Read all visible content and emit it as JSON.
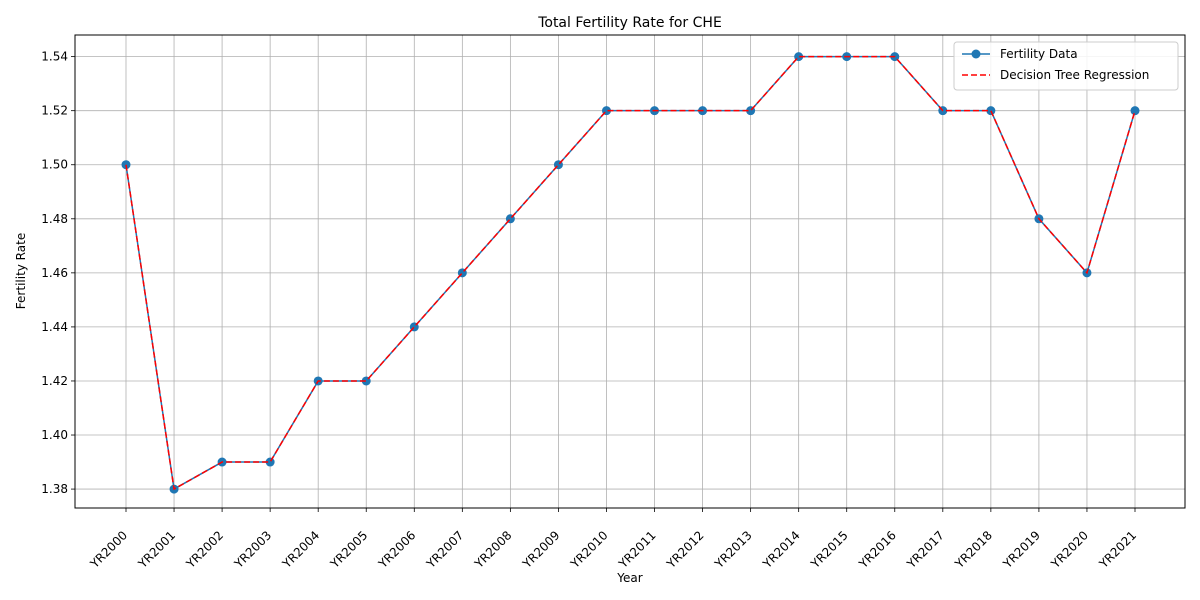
{
  "chart_data": {
    "type": "line",
    "title": "Total Fertility Rate for CHE",
    "xlabel": "Year",
    "ylabel": "Fertility Rate",
    "categories": [
      "YR2000",
      "YR2001",
      "YR2002",
      "YR2003",
      "YR2004",
      "YR2005",
      "YR2006",
      "YR2007",
      "YR2008",
      "YR2009",
      "YR2010",
      "YR2011",
      "YR2012",
      "YR2013",
      "YR2014",
      "YR2015",
      "YR2016",
      "YR2017",
      "YR2018",
      "YR2019",
      "YR2020",
      "YR2021"
    ],
    "ylim": [
      1.373,
      1.548
    ],
    "yticks": [
      "1.38",
      "1.40",
      "1.42",
      "1.44",
      "1.46",
      "1.48",
      "1.50",
      "1.52",
      "1.54"
    ],
    "grid": true,
    "legend_position": "top-right",
    "series": [
      {
        "name": "Fertility Data",
        "color": "#1f77b4",
        "style": "solid-with-markers",
        "values": [
          1.5,
          1.38,
          1.39,
          1.39,
          1.42,
          1.42,
          1.44,
          1.46,
          1.48,
          1.5,
          1.52,
          1.52,
          1.52,
          1.52,
          1.54,
          1.54,
          1.54,
          1.52,
          1.52,
          1.48,
          1.46,
          1.52
        ]
      },
      {
        "name": "Decision Tree Regression",
        "color": "#ff0000",
        "style": "dashed",
        "values": [
          1.5,
          1.38,
          1.39,
          1.39,
          1.42,
          1.42,
          1.44,
          1.46,
          1.48,
          1.5,
          1.52,
          1.52,
          1.52,
          1.52,
          1.54,
          1.54,
          1.54,
          1.52,
          1.52,
          1.48,
          1.46,
          1.52
        ]
      }
    ]
  }
}
